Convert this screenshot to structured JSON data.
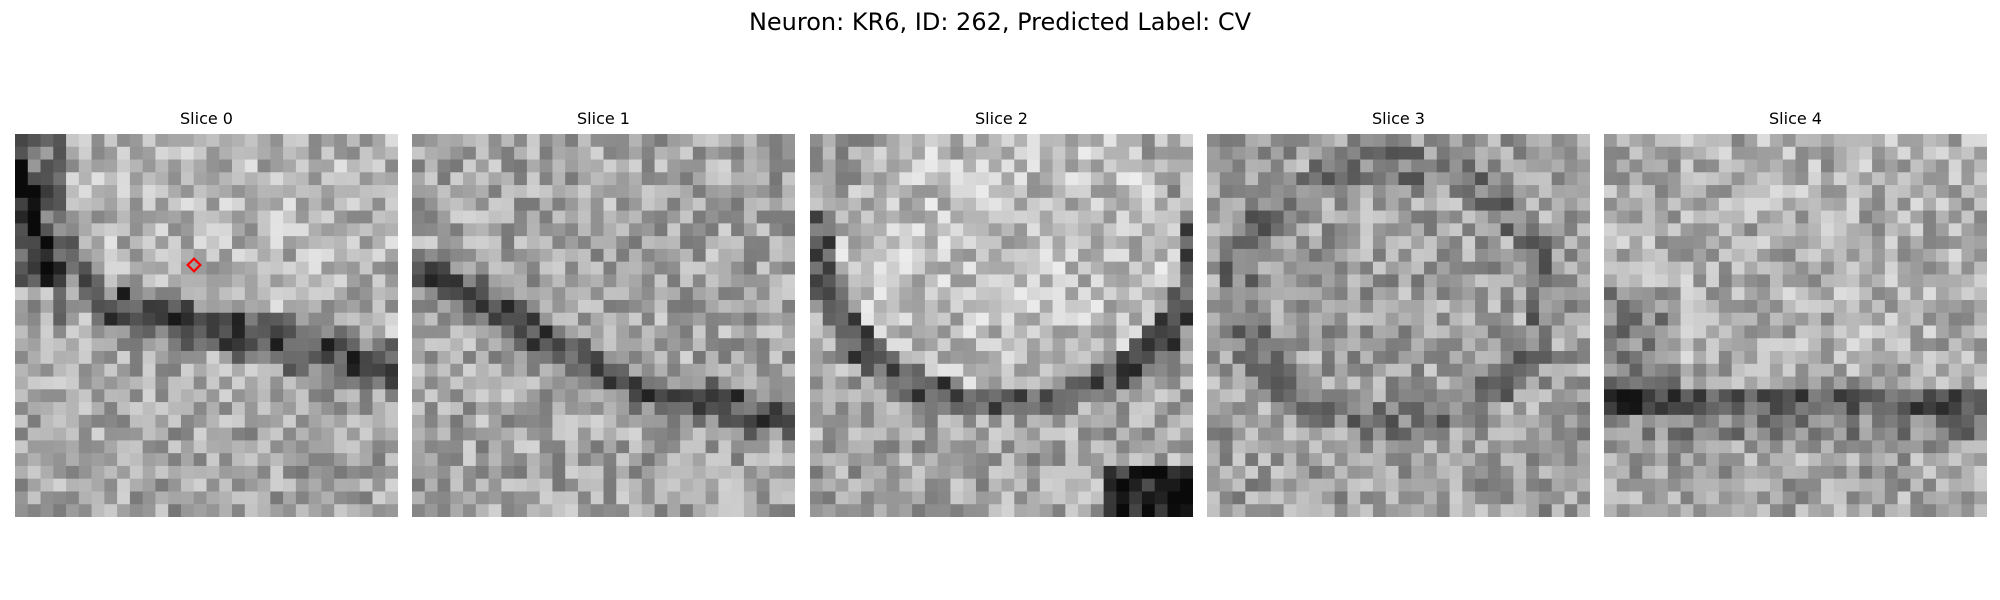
{
  "figure": {
    "title": "Neuron: KR6, ID: 262, Predicted Label: CV"
  },
  "slices": [
    {
      "label": "Slice 0",
      "seed": 11,
      "structure": "membrane-arc",
      "has_marker": true
    },
    {
      "label": "Slice 1",
      "seed": 23,
      "structure": "membrane-arc",
      "has_marker": false
    },
    {
      "label": "Slice 2",
      "seed": 37,
      "structure": "bright-disc-with-dark-corner",
      "has_marker": false
    },
    {
      "label": "Slice 3",
      "seed": 53,
      "structure": "faint-ring",
      "has_marker": false
    },
    {
      "label": "Slice 4",
      "seed": 71,
      "structure": "lower-band",
      "has_marker": false
    }
  ],
  "colors": {
    "marker": "#ff0000",
    "background": "#ffffff",
    "text": "#000000"
  }
}
